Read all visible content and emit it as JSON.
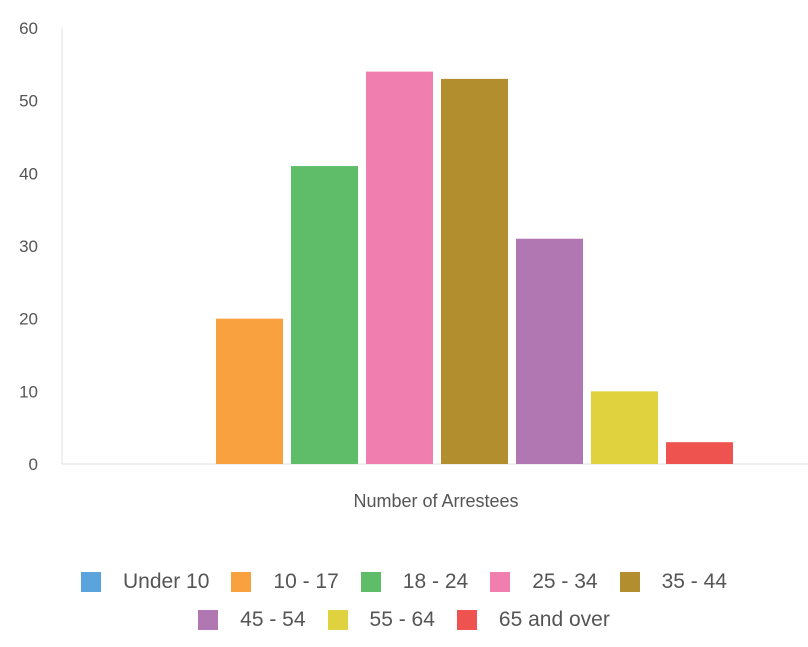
{
  "chart_data": {
    "type": "bar",
    "title": "",
    "xlabel": "Number of Arrestees",
    "ylabel": "",
    "ylim": [
      0,
      60
    ],
    "yticks": [
      0,
      10,
      20,
      30,
      40,
      50,
      60
    ],
    "grid": false,
    "legend_position": "bottom",
    "categories": [
      "Number of Arrestees"
    ],
    "series": [
      {
        "name": "Under 10",
        "color": "#5ba3dc",
        "values": [
          0
        ]
      },
      {
        "name": "10 - 17",
        "color": "#f9a03f",
        "values": [
          20
        ]
      },
      {
        "name": "18 - 24",
        "color": "#5fbd6a",
        "values": [
          41
        ]
      },
      {
        "name": "25 - 34",
        "color": "#f07fb0",
        "values": [
          54
        ]
      },
      {
        "name": "35 - 44",
        "color": "#b28e2f",
        "values": [
          53
        ]
      },
      {
        "name": "45 - 54",
        "color": "#b077b3",
        "values": [
          31
        ]
      },
      {
        "name": "55 - 64",
        "color": "#e0d13f",
        "values": [
          10
        ]
      },
      {
        "name": "65 and over",
        "color": "#ef5350",
        "values": [
          3
        ]
      }
    ]
  }
}
